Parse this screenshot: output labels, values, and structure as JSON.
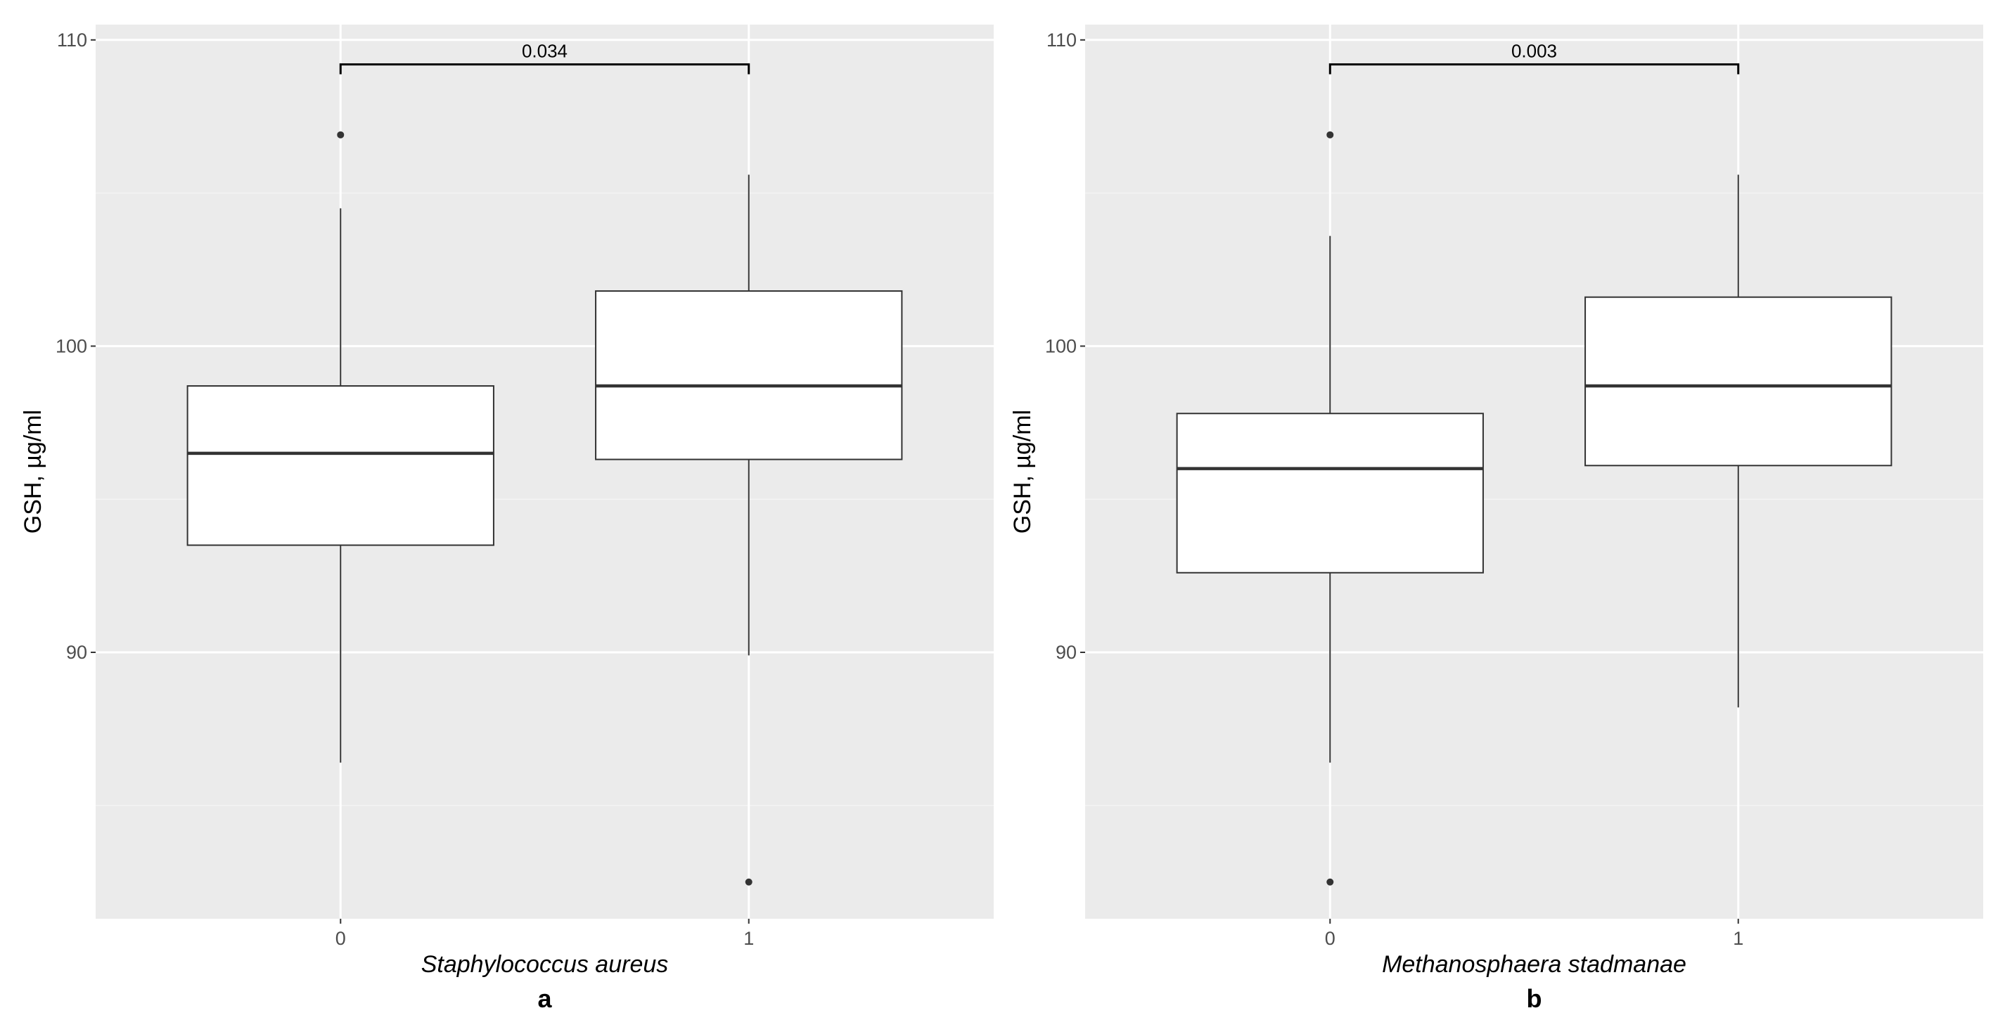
{
  "chart_data": [
    {
      "type": "box",
      "panel_label": "a",
      "xlabel": "Staphylococcus aureus",
      "ylabel": "GSH, µg/ml",
      "ylim": [
        81.3,
        110.5
      ],
      "yticks": [
        90,
        100,
        110
      ],
      "ytick_labels": [
        "90",
        "100",
        "110"
      ],
      "categories": [
        "0",
        "1"
      ],
      "grid": true,
      "boxes": [
        {
          "category": "0",
          "whisker_low": 86.4,
          "q1": 93.5,
          "median": 96.5,
          "q3": 98.7,
          "whisker_high": 104.5,
          "outliers": [
            106.9
          ]
        },
        {
          "category": "1",
          "whisker_low": 89.9,
          "q1": 96.3,
          "median": 98.7,
          "q3": 101.8,
          "whisker_high": 105.6,
          "outliers": [
            82.5
          ]
        }
      ],
      "significance": {
        "from": "0",
        "to": "1",
        "label": "0.034",
        "y": 109.2
      }
    },
    {
      "type": "box",
      "panel_label": "b",
      "xlabel": "Methanosphaera stadmanae",
      "ylabel": "GSH, µg/ml",
      "ylim": [
        81.3,
        110.5
      ],
      "yticks": [
        90,
        100,
        110
      ],
      "ytick_labels": [
        "90",
        "100",
        "110"
      ],
      "categories": [
        "0",
        "1"
      ],
      "grid": true,
      "boxes": [
        {
          "category": "0",
          "whisker_low": 86.4,
          "q1": 92.6,
          "median": 96.0,
          "q3": 97.8,
          "whisker_high": 103.6,
          "outliers": [
            106.9,
            82.5
          ]
        },
        {
          "category": "1",
          "whisker_low": 88.2,
          "q1": 96.1,
          "median": 98.7,
          "q3": 101.6,
          "whisker_high": 105.6,
          "outliers": []
        }
      ],
      "significance": {
        "from": "0",
        "to": "1",
        "label": "0.003",
        "y": 109.2
      }
    }
  ],
  "colors": {
    "panel_background": "#ebebeb",
    "grid_major": "#ffffff",
    "grid_minor": "#f4f4f4",
    "box_fill": "#ffffff",
    "box_line": "#333333"
  }
}
